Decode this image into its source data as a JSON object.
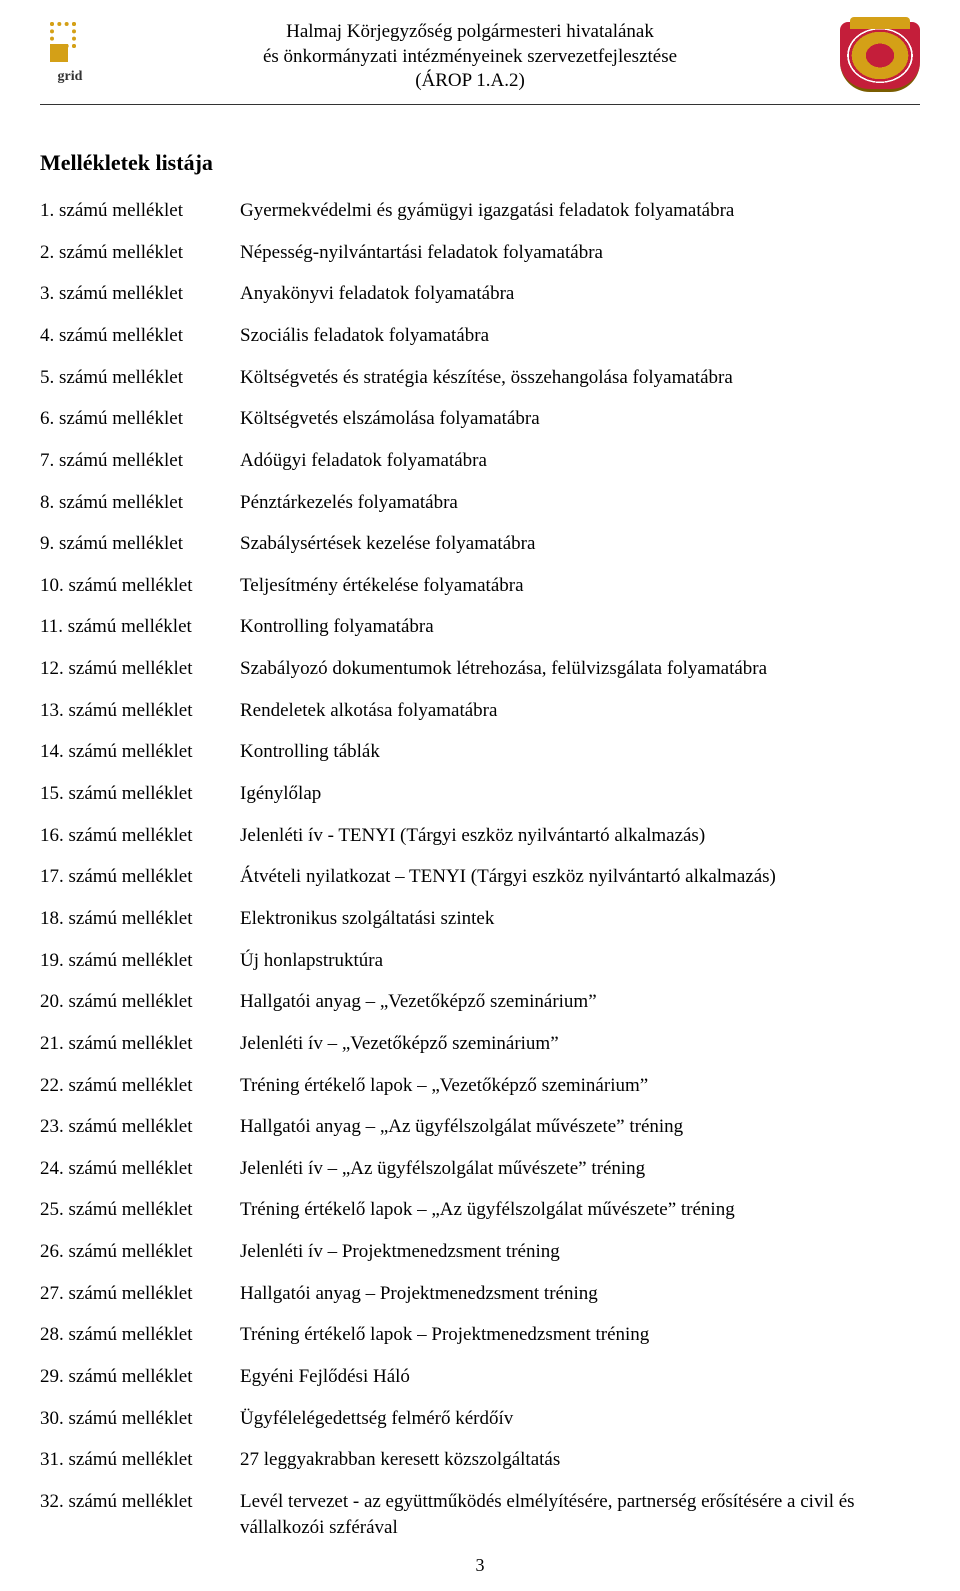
{
  "header": {
    "logo_left_text": "grid",
    "line1": "Halmaj Körjegyzőség polgármesteri hivatalának",
    "line2": "és önkormányzati intézményeinek szervezetfejlesztése",
    "line3": "(ÁROP 1.A.2)"
  },
  "section_title": "Mellékletek listája",
  "attachments": [
    {
      "num": "1. számú melléklet",
      "desc": "Gyermekvédelmi és gyámügyi igazgatási feladatok folyamatábra"
    },
    {
      "num": "2. számú melléklet",
      "desc": "Népesség-nyilvántartási feladatok folyamatábra"
    },
    {
      "num": "3. számú melléklet",
      "desc": "Anyakönyvi feladatok folyamatábra"
    },
    {
      "num": "4. számú melléklet",
      "desc": "Szociális feladatok folyamatábra"
    },
    {
      "num": "5. számú melléklet",
      "desc": "Költségvetés és stratégia készítése, összehangolása folyamatábra"
    },
    {
      "num": "6. számú melléklet",
      "desc": "Költségvetés elszámolása folyamatábra"
    },
    {
      "num": "7. számú melléklet",
      "desc": "Adóügyi feladatok folyamatábra"
    },
    {
      "num": "8. számú melléklet",
      "desc": "Pénztárkezelés folyamatábra"
    },
    {
      "num": "9. számú melléklet",
      "desc": "Szabálysértések kezelése folyamatábra"
    },
    {
      "num": "10. számú melléklet",
      "desc": "Teljesítmény értékelése folyamatábra"
    },
    {
      "num": "11. számú melléklet",
      "desc": "Kontrolling folyamatábra"
    },
    {
      "num": "12. számú melléklet",
      "desc": "Szabályozó dokumentumok létrehozása, felülvizsgálata folyamatábra"
    },
    {
      "num": "13. számú melléklet",
      "desc": "Rendeletek alkotása folyamatábra"
    },
    {
      "num": "14. számú melléklet",
      "desc": "Kontrolling táblák"
    },
    {
      "num": "15. számú melléklet",
      "desc": "Igénylőlap"
    },
    {
      "num": "16. számú melléklet",
      "desc": "Jelenléti ív - TENYI (Tárgyi eszköz nyilvántartó alkalmazás)"
    },
    {
      "num": "17. számú melléklet",
      "desc": "Átvételi nyilatkozat – TENYI (Tárgyi eszköz nyilvántartó alkalmazás)"
    },
    {
      "num": "18. számú melléklet",
      "desc": "Elektronikus szolgáltatási szintek"
    },
    {
      "num": "19. számú melléklet",
      "desc": "Új honlapstruktúra"
    },
    {
      "num": "20. számú melléklet",
      "desc": "Hallgatói anyag – „Vezetőképző szeminárium”"
    },
    {
      "num": "21. számú melléklet",
      "desc": "Jelenléti ív – „Vezetőképző szeminárium”"
    },
    {
      "num": "22. számú melléklet",
      "desc": "Tréning értékelő lapok – „Vezetőképző szeminárium”"
    },
    {
      "num": "23. számú melléklet",
      "desc": "Hallgatói anyag – „Az ügyfélszolgálat művészete” tréning"
    },
    {
      "num": "24. számú melléklet",
      "desc": "Jelenléti ív – „Az ügyfélszolgálat művészete” tréning"
    },
    {
      "num": "25. számú melléklet",
      "desc": "Tréning értékelő lapok – „Az ügyfélszolgálat művészete” tréning"
    },
    {
      "num": "26. számú melléklet",
      "desc": "Jelenléti ív – Projektmenedzsment tréning"
    },
    {
      "num": "27. számú melléklet",
      "desc": "Hallgatói anyag – Projektmenedzsment tréning"
    },
    {
      "num": "28. számú melléklet",
      "desc": "Tréning értékelő lapok – Projektmenedzsment tréning"
    },
    {
      "num": "29. számú melléklet",
      "desc": "Egyéni Fejlődési Háló"
    },
    {
      "num": "30. számú melléklet",
      "desc": "Ügyfélelégedettség felmérő kérdőív"
    },
    {
      "num": "31. számú melléklet",
      "desc": "27 leggyakrabban keresett közszolgáltatás"
    },
    {
      "num": "32. számú melléklet",
      "desc": "Levél tervezet - az együttműködés elmélyítésére, partnerség erősítésére a civil és vállalkozói szférával"
    }
  ],
  "page_number": "3",
  "colors": {
    "text": "#000000",
    "background": "#ffffff",
    "logo_gold": "#d4a017",
    "crest_red": "#c41e3a"
  },
  "typography": {
    "body_fontsize": 19,
    "title_fontsize": 22,
    "header_fontsize": 19,
    "font_family": "Palatino"
  }
}
